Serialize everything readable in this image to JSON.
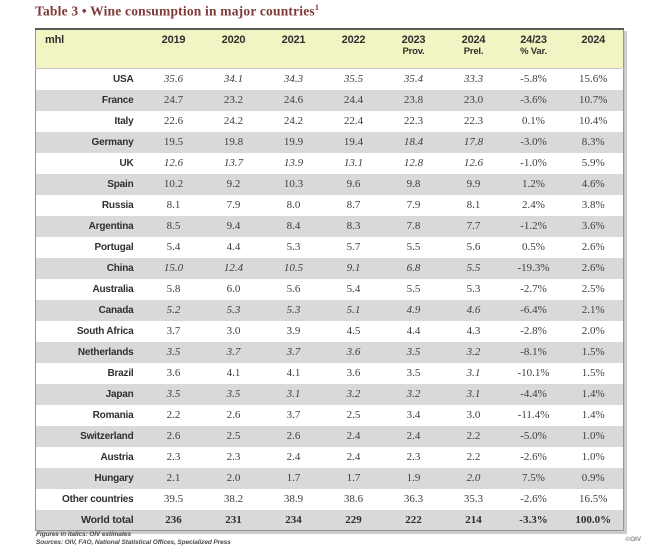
{
  "page": {
    "title_text": "Table 3 • Wine consumption in major countries",
    "title_superscript": "1",
    "copyright": "©OIV"
  },
  "colors": {
    "title": "#7e3a36",
    "header_background": "#f3f4c3",
    "row_stripe": "#d9d9d9",
    "body_text": "#3e3e3e"
  },
  "table": {
    "unit_label": "mhl",
    "year_columns": [
      {
        "line1": "2019",
        "line2": ""
      },
      {
        "line1": "2020",
        "line2": ""
      },
      {
        "line1": "2021",
        "line2": ""
      },
      {
        "line1": "2022",
        "line2": ""
      },
      {
        "line1": "2023",
        "line2": "Prov."
      },
      {
        "line1": "2024",
        "line2": "Prel."
      },
      {
        "line1": "24/23",
        "line2": "% Var."
      },
      {
        "line1": "2024",
        "line2": ""
      }
    ],
    "rows": [
      {
        "country": "USA",
        "values": [
          "35.6",
          "34.1",
          "34.3",
          "35.5",
          "35.4",
          "33.3",
          "-5.8%",
          "15.6%"
        ],
        "italics": [
          true,
          true,
          true,
          true,
          true,
          true,
          false,
          false
        ],
        "shaded": false,
        "total": false
      },
      {
        "country": "France",
        "values": [
          "24.7",
          "23.2",
          "24.6",
          "24.4",
          "23.8",
          "23.0",
          "-3.6%",
          "10.7%"
        ],
        "italics": [
          false,
          false,
          false,
          false,
          false,
          false,
          false,
          false
        ],
        "shaded": true,
        "total": false
      },
      {
        "country": "Italy",
        "values": [
          "22.6",
          "24.2",
          "24.2",
          "22.4",
          "22.3",
          "22.3",
          "0.1%",
          "10.4%"
        ],
        "italics": [
          false,
          false,
          false,
          false,
          false,
          false,
          false,
          false
        ],
        "shaded": false,
        "total": false
      },
      {
        "country": "Germany",
        "values": [
          "19.5",
          "19.8",
          "19.9",
          "19.4",
          "18.4",
          "17.8",
          "-3.0%",
          "8.3%"
        ],
        "italics": [
          false,
          false,
          false,
          false,
          true,
          true,
          false,
          false
        ],
        "shaded": true,
        "total": false
      },
      {
        "country": "UK",
        "values": [
          "12.6",
          "13.7",
          "13.9",
          "13.1",
          "12.8",
          "12.6",
          "-1.0%",
          "5.9%"
        ],
        "italics": [
          true,
          true,
          true,
          true,
          true,
          true,
          false,
          false
        ],
        "shaded": false,
        "total": false
      },
      {
        "country": "Spain",
        "values": [
          "10.2",
          "9.2",
          "10.3",
          "9.6",
          "9.8",
          "9.9",
          "1.2%",
          "4.6%"
        ],
        "italics": [
          false,
          false,
          false,
          false,
          false,
          false,
          false,
          false
        ],
        "shaded": true,
        "total": false
      },
      {
        "country": "Russia",
        "values": [
          "8.1",
          "7.9",
          "8.0",
          "8.7",
          "7.9",
          "8.1",
          "2.4%",
          "3.8%"
        ],
        "italics": [
          false,
          false,
          false,
          false,
          false,
          false,
          false,
          false
        ],
        "shaded": false,
        "total": false
      },
      {
        "country": "Argentina",
        "values": [
          "8.5",
          "9.4",
          "8.4",
          "8.3",
          "7.8",
          "7.7",
          "-1.2%",
          "3.6%"
        ],
        "italics": [
          false,
          false,
          false,
          false,
          false,
          false,
          false,
          false
        ],
        "shaded": true,
        "total": false
      },
      {
        "country": "Portugal",
        "values": [
          "5.4",
          "4.4",
          "5.3",
          "5.7",
          "5.5",
          "5.6",
          "0.5%",
          "2.6%"
        ],
        "italics": [
          false,
          false,
          false,
          false,
          false,
          false,
          false,
          false
        ],
        "shaded": false,
        "total": false
      },
      {
        "country": "China",
        "values": [
          "15.0",
          "12.4",
          "10.5",
          "9.1",
          "6.8",
          "5.5",
          "-19.3%",
          "2.6%"
        ],
        "italics": [
          true,
          true,
          true,
          true,
          true,
          true,
          false,
          false
        ],
        "shaded": true,
        "total": false
      },
      {
        "country": "Australia",
        "values": [
          "5.8",
          "6.0",
          "5.6",
          "5.4",
          "5.5",
          "5.3",
          "-2.7%",
          "2.5%"
        ],
        "italics": [
          false,
          false,
          false,
          false,
          false,
          false,
          false,
          false
        ],
        "shaded": false,
        "total": false
      },
      {
        "country": "Canada",
        "values": [
          "5.2",
          "5.3",
          "5.3",
          "5.1",
          "4.9",
          "4.6",
          "-6.4%",
          "2.1%"
        ],
        "italics": [
          true,
          true,
          true,
          true,
          true,
          true,
          false,
          false
        ],
        "shaded": true,
        "total": false
      },
      {
        "country": "South Africa",
        "values": [
          "3.7",
          "3.0",
          "3.9",
          "4.5",
          "4.4",
          "4.3",
          "-2.8%",
          "2.0%"
        ],
        "italics": [
          false,
          false,
          false,
          false,
          false,
          false,
          false,
          false
        ],
        "shaded": false,
        "total": false
      },
      {
        "country": "Netherlands",
        "values": [
          "3.5",
          "3.7",
          "3.7",
          "3.6",
          "3.5",
          "3.2",
          "-8.1%",
          "1.5%"
        ],
        "italics": [
          true,
          true,
          true,
          true,
          true,
          true,
          false,
          false
        ],
        "shaded": true,
        "total": false
      },
      {
        "country": "Brazil",
        "values": [
          "3.6",
          "4.1",
          "4.1",
          "3.6",
          "3.5",
          "3.1",
          "-10.1%",
          "1.5%"
        ],
        "italics": [
          false,
          false,
          false,
          false,
          false,
          true,
          false,
          false
        ],
        "shaded": false,
        "total": false
      },
      {
        "country": "Japan",
        "values": [
          "3.5",
          "3.5",
          "3.1",
          "3.2",
          "3.2",
          "3.1",
          "-4.4%",
          "1.4%"
        ],
        "italics": [
          true,
          true,
          true,
          true,
          true,
          true,
          false,
          false
        ],
        "shaded": true,
        "total": false
      },
      {
        "country": "Romania",
        "values": [
          "2.2",
          "2.6",
          "3.7",
          "2.5",
          "3.4",
          "3.0",
          "-11.4%",
          "1.4%"
        ],
        "italics": [
          false,
          false,
          false,
          false,
          false,
          false,
          false,
          false
        ],
        "shaded": false,
        "total": false
      },
      {
        "country": "Switzerland",
        "values": [
          "2.6",
          "2.5",
          "2.6",
          "2.4",
          "2.4",
          "2.2",
          "-5.0%",
          "1.0%"
        ],
        "italics": [
          false,
          false,
          false,
          false,
          false,
          false,
          false,
          false
        ],
        "shaded": true,
        "total": false
      },
      {
        "country": "Austria",
        "values": [
          "2.3",
          "2.3",
          "2.4",
          "2.4",
          "2.3",
          "2.2",
          "-2.6%",
          "1.0%"
        ],
        "italics": [
          false,
          false,
          false,
          false,
          false,
          false,
          false,
          false
        ],
        "shaded": false,
        "total": false
      },
      {
        "country": "Hungary",
        "values": [
          "2.1",
          "2.0",
          "1.7",
          "1.7",
          "1.9",
          "2.0",
          "7.5%",
          "0.9%"
        ],
        "italics": [
          false,
          false,
          false,
          false,
          false,
          true,
          false,
          false
        ],
        "shaded": true,
        "total": false
      },
      {
        "country": "Other countries",
        "values": [
          "39.5",
          "38.2",
          "38.9",
          "38.6",
          "36.3",
          "35.3",
          "-2.6%",
          "16.5%"
        ],
        "italics": [
          false,
          false,
          false,
          false,
          false,
          false,
          false,
          false
        ],
        "shaded": false,
        "total": false
      },
      {
        "country": "World total",
        "values": [
          "236",
          "231",
          "234",
          "229",
          "222",
          "214",
          "-3.3%",
          "100.0%"
        ],
        "italics": [
          false,
          false,
          false,
          false,
          false,
          false,
          false,
          false
        ],
        "shaded": true,
        "total": true
      }
    ]
  },
  "footnotes": {
    "line1": "Figures in italics: OIV estimates",
    "line2": "Sources: OIV, FAO, National Statistical Offices, Specialized Press"
  }
}
